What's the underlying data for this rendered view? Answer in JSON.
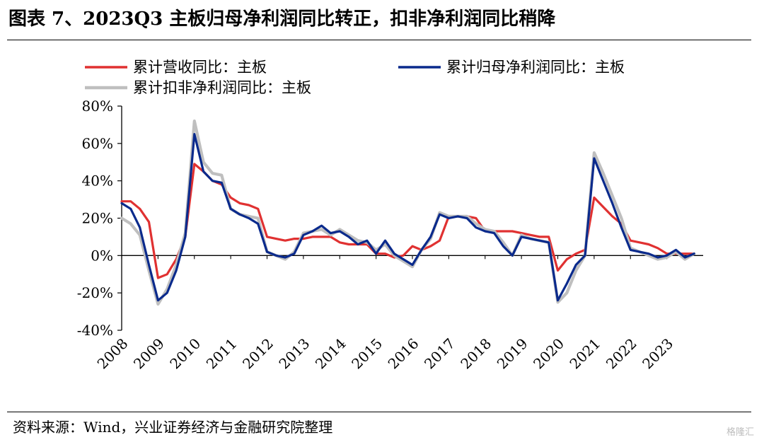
{
  "title": "图表 7、2023Q3 主板归母净利润同比转正，扣非净利润同比稍降",
  "source": "资料来源：Wind，兴业证券经济与金融研究院整理",
  "watermark": "格隆汇",
  "colors": {
    "revenue": "#e03131",
    "net_profit": "#0a2a8c",
    "deducted_net_profit": "#bfbfbf"
  },
  "chart_data": {
    "type": "line",
    "ylim": [
      -40,
      80
    ],
    "yticks": [
      "80%",
      "60%",
      "40%",
      "20%",
      "0%",
      "-20%",
      "-40%"
    ],
    "yvalues": [
      80,
      60,
      40,
      20,
      0,
      -20,
      -40
    ],
    "xlim": [
      2008,
      2024
    ],
    "xticks": [
      "2008",
      "2009",
      "2010",
      "2011",
      "2012",
      "2013",
      "2014",
      "2015",
      "2016",
      "2017",
      "2018",
      "2019",
      "2020",
      "2021",
      "2022",
      "2023"
    ],
    "legend": {
      "position": "top"
    },
    "series": [
      {
        "key": "revenue",
        "name": "累计营收同比：主板",
        "x": [
          2008,
          2008.25,
          2008.5,
          2008.75,
          2009,
          2009.25,
          2009.5,
          2009.75,
          2010,
          2010.25,
          2010.5,
          2010.75,
          2011,
          2011.25,
          2011.5,
          2011.75,
          2012,
          2012.25,
          2012.5,
          2012.75,
          2013,
          2013.25,
          2013.5,
          2013.75,
          2014,
          2014.25,
          2014.5,
          2014.75,
          2015,
          2015.25,
          2015.5,
          2015.75,
          2016,
          2016.25,
          2016.5,
          2016.75,
          2017,
          2017.25,
          2017.5,
          2017.75,
          2018,
          2018.25,
          2018.5,
          2018.75,
          2019,
          2019.25,
          2019.5,
          2019.75,
          2020,
          2020.25,
          2020.5,
          2020.75,
          2021,
          2021.25,
          2021.5,
          2021.75,
          2022,
          2022.25,
          2022.5,
          2022.75,
          2023,
          2023.25,
          2023.5,
          2023.75
        ],
        "values": [
          29,
          29,
          25,
          18,
          -12,
          -10,
          -2,
          10,
          49,
          45,
          40,
          38,
          31,
          28,
          27,
          25,
          10,
          9,
          8,
          9,
          9,
          10,
          10,
          10,
          7,
          6,
          6,
          6,
          1,
          1,
          -1,
          0,
          5,
          3,
          5,
          8,
          21,
          21,
          21,
          20,
          13,
          13,
          13,
          13,
          12,
          11,
          10,
          10,
          -8,
          -2,
          1,
          3,
          31,
          26,
          21,
          17,
          8,
          7,
          6,
          4,
          1,
          1,
          1,
          1
        ]
      },
      {
        "key": "net_profit",
        "name": "累计归母净利润同比：主板",
        "x": [
          2008,
          2008.25,
          2008.5,
          2008.75,
          2009,
          2009.25,
          2009.5,
          2009.75,
          2010,
          2010.25,
          2010.5,
          2010.75,
          2011,
          2011.25,
          2011.5,
          2011.75,
          2012,
          2012.25,
          2012.5,
          2012.75,
          2013,
          2013.25,
          2013.5,
          2013.75,
          2014,
          2014.25,
          2014.5,
          2014.75,
          2015,
          2015.25,
          2015.5,
          2015.75,
          2016,
          2016.25,
          2016.5,
          2016.75,
          2017,
          2017.25,
          2017.5,
          2017.75,
          2018,
          2018.25,
          2018.5,
          2018.75,
          2019,
          2019.25,
          2019.5,
          2019.75,
          2020,
          2020.25,
          2020.5,
          2020.75,
          2021,
          2021.25,
          2021.5,
          2021.75,
          2022,
          2022.25,
          2022.5,
          2022.75,
          2023,
          2023.25,
          2023.5,
          2023.75
        ],
        "values": [
          28,
          25,
          15,
          -5,
          -24,
          -20,
          -8,
          10,
          65,
          45,
          40,
          39,
          25,
          22,
          20,
          17,
          2,
          0,
          -1,
          1,
          11,
          13,
          16,
          12,
          13,
          10,
          6,
          8,
          1,
          8,
          1,
          -2,
          -5,
          3,
          10,
          22,
          20,
          21,
          20,
          15,
          13,
          12,
          5,
          0,
          10,
          9,
          8,
          7,
          -24,
          -15,
          -5,
          0,
          52,
          40,
          28,
          15,
          3,
          2,
          1,
          -1,
          0,
          3,
          -1,
          1
        ]
      },
      {
        "key": "deducted_net_profit",
        "name": "累计扣非净利润同比：主板",
        "x": [
          2008,
          2008.25,
          2008.5,
          2008.75,
          2009,
          2009.25,
          2009.5,
          2009.75,
          2010,
          2010.25,
          2010.5,
          2010.75,
          2011,
          2011.25,
          2011.5,
          2011.75,
          2012,
          2012.25,
          2012.5,
          2012.75,
          2013,
          2013.25,
          2013.5,
          2013.75,
          2014,
          2014.25,
          2014.5,
          2014.75,
          2015,
          2015.25,
          2015.5,
          2015.75,
          2016,
          2016.25,
          2016.5,
          2016.75,
          2017,
          2017.25,
          2017.5,
          2017.75,
          2018,
          2018.25,
          2018.5,
          2018.75,
          2019,
          2019.25,
          2019.5,
          2019.75,
          2020,
          2020.25,
          2020.5,
          2020.75,
          2021,
          2021.25,
          2021.5,
          2021.75,
          2022,
          2022.25,
          2022.5,
          2022.75,
          2023,
          2023.25,
          2023.5,
          2023.75
        ],
        "values": [
          20,
          17,
          11,
          -8,
          -26,
          -18,
          -5,
          12,
          72,
          50,
          44,
          43,
          25,
          22,
          21,
          20,
          2,
          0,
          -2,
          2,
          12,
          13,
          14,
          11,
          14,
          11,
          8,
          7,
          3,
          6,
          0,
          -3,
          -6,
          3,
          9,
          23,
          21,
          21,
          21,
          17,
          14,
          13,
          7,
          0,
          11,
          9,
          8,
          7,
          -25,
          -20,
          -8,
          0,
          55,
          44,
          32,
          20,
          4,
          2,
          0,
          -2,
          -1,
          2,
          -2,
          1
        ]
      }
    ]
  }
}
